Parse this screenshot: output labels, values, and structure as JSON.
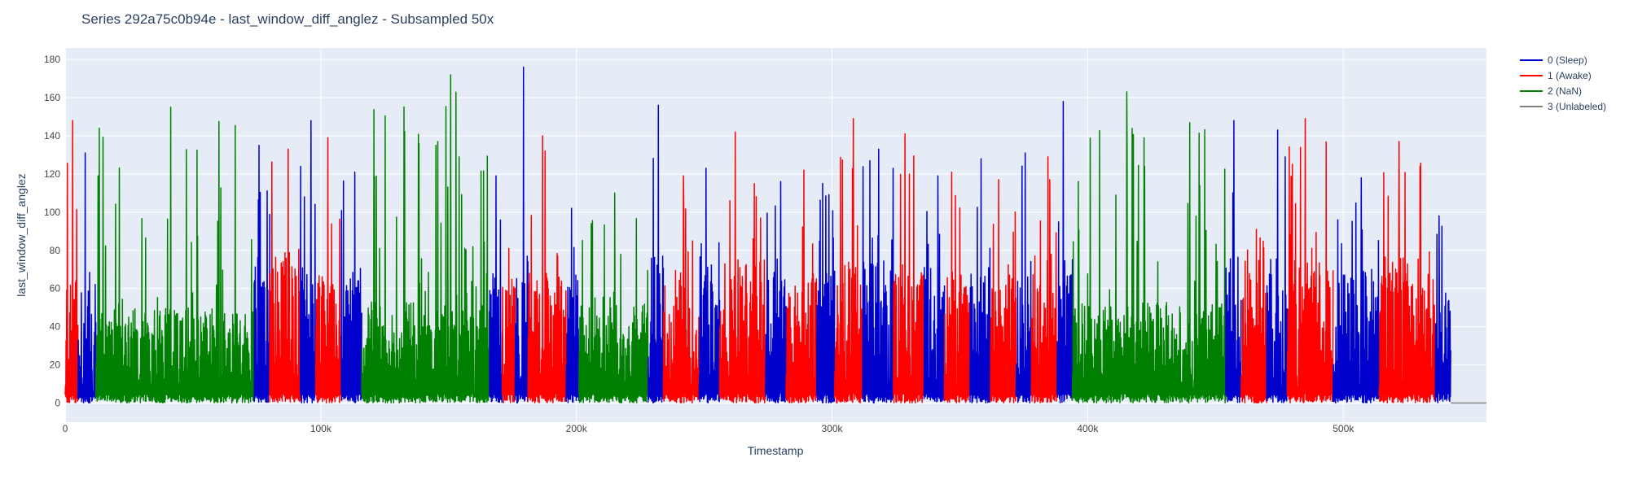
{
  "chart_data": {
    "type": "line",
    "title": "Series 292a75c0b94e - last_window_diff_anglez - Subsampled 50x",
    "xlabel": "Timestamp",
    "ylabel": "last_window_diff_anglez",
    "xlim": [
      0,
      556000
    ],
    "ylim": [
      -10,
      186
    ],
    "grid": true,
    "legend_position": "top-right",
    "x_ticks": [
      {
        "value": 0,
        "label": "0"
      },
      {
        "value": 100000,
        "label": "100k"
      },
      {
        "value": 200000,
        "label": "200k"
      },
      {
        "value": 300000,
        "label": "300k"
      },
      {
        "value": 400000,
        "label": "400k"
      },
      {
        "value": 500000,
        "label": "500k"
      }
    ],
    "y_ticks": [
      {
        "value": 0,
        "label": "0"
      },
      {
        "value": 20,
        "label": "20"
      },
      {
        "value": 40,
        "label": "40"
      },
      {
        "value": 60,
        "label": "60"
      },
      {
        "value": 80,
        "label": "80"
      },
      {
        "value": 100,
        "label": "100"
      },
      {
        "value": 120,
        "label": "120"
      },
      {
        "value": 140,
        "label": "140"
      },
      {
        "value": 160,
        "label": "160"
      },
      {
        "value": 180,
        "label": "180"
      }
    ],
    "series": [
      {
        "key": "sleep",
        "name": "0 (Sleep)",
        "color": "#0000cc"
      },
      {
        "key": "awake",
        "name": "1 (Awake)",
        "color": "#ff0000"
      },
      {
        "key": "nan",
        "name": "2 (NaN)",
        "color": "#008000"
      },
      {
        "key": "unlabeled",
        "name": "3 (Unlabeled)",
        "color": "#808080"
      }
    ],
    "segments": [
      {
        "series": "awake",
        "x_start": 0,
        "x_end": 5000,
        "peak": 148,
        "mean_level": 45
      },
      {
        "series": "sleep",
        "x_start": 5000,
        "x_end": 12000,
        "peak": 131,
        "mean_level": 40
      },
      {
        "series": "nan",
        "x_start": 12000,
        "x_end": 74000,
        "peak": 155,
        "mean_level": 28
      },
      {
        "series": "sleep",
        "x_start": 74000,
        "x_end": 80000,
        "peak": 135,
        "mean_level": 45
      },
      {
        "series": "awake",
        "x_start": 80000,
        "x_end": 92000,
        "peak": 133,
        "mean_level": 45
      },
      {
        "series": "sleep",
        "x_start": 92000,
        "x_end": 98000,
        "peak": 148,
        "mean_level": 45
      },
      {
        "series": "awake",
        "x_start": 98000,
        "x_end": 108000,
        "peak": 139,
        "mean_level": 40
      },
      {
        "series": "sleep",
        "x_start": 108000,
        "x_end": 116000,
        "peak": 121,
        "mean_level": 40
      },
      {
        "series": "nan",
        "x_start": 116000,
        "x_end": 166000,
        "peak": 172,
        "mean_level": 30
      },
      {
        "series": "sleep",
        "x_start": 166000,
        "x_end": 171000,
        "peak": 119,
        "mean_level": 40
      },
      {
        "series": "awake",
        "x_start": 171000,
        "x_end": 176000,
        "peak": 81,
        "mean_level": 35
      },
      {
        "series": "sleep",
        "x_start": 176000,
        "x_end": 181000,
        "peak": 176,
        "mean_level": 45
      },
      {
        "series": "awake",
        "x_start": 181000,
        "x_end": 196000,
        "peak": 140,
        "mean_level": 40
      },
      {
        "series": "sleep",
        "x_start": 196000,
        "x_end": 201000,
        "peak": 102,
        "mean_level": 40
      },
      {
        "series": "nan",
        "x_start": 201000,
        "x_end": 228000,
        "peak": 110,
        "mean_level": 30
      },
      {
        "series": "sleep",
        "x_start": 228000,
        "x_end": 234000,
        "peak": 156,
        "mean_level": 45
      },
      {
        "series": "awake",
        "x_start": 234000,
        "x_end": 248000,
        "peak": 119,
        "mean_level": 40
      },
      {
        "series": "sleep",
        "x_start": 248000,
        "x_end": 256000,
        "peak": 123,
        "mean_level": 45
      },
      {
        "series": "awake",
        "x_start": 256000,
        "x_end": 274000,
        "peak": 142,
        "mean_level": 45
      },
      {
        "series": "sleep",
        "x_start": 274000,
        "x_end": 282000,
        "peak": 116,
        "mean_level": 40
      },
      {
        "series": "awake",
        "x_start": 282000,
        "x_end": 294000,
        "peak": 122,
        "mean_level": 40
      },
      {
        "series": "sleep",
        "x_start": 294000,
        "x_end": 301000,
        "peak": 115,
        "mean_level": 40
      },
      {
        "series": "awake",
        "x_start": 301000,
        "x_end": 312000,
        "peak": 149,
        "mean_level": 45
      },
      {
        "series": "sleep",
        "x_start": 312000,
        "x_end": 324000,
        "peak": 133,
        "mean_level": 45
      },
      {
        "series": "awake",
        "x_start": 324000,
        "x_end": 336000,
        "peak": 141,
        "mean_level": 40
      },
      {
        "series": "sleep",
        "x_start": 336000,
        "x_end": 344000,
        "peak": 119,
        "mean_level": 40
      },
      {
        "series": "awake",
        "x_start": 344000,
        "x_end": 354000,
        "peak": 121,
        "mean_level": 40
      },
      {
        "series": "sleep",
        "x_start": 354000,
        "x_end": 362000,
        "peak": 128,
        "mean_level": 40
      },
      {
        "series": "awake",
        "x_start": 362000,
        "x_end": 372000,
        "peak": 117,
        "mean_level": 40
      },
      {
        "series": "sleep",
        "x_start": 372000,
        "x_end": 378000,
        "peak": 131,
        "mean_level": 40
      },
      {
        "series": "awake",
        "x_start": 378000,
        "x_end": 388000,
        "peak": 129,
        "mean_level": 45
      },
      {
        "series": "sleep",
        "x_start": 388000,
        "x_end": 394000,
        "peak": 158,
        "mean_level": 45
      },
      {
        "series": "nan",
        "x_start": 394000,
        "x_end": 454000,
        "peak": 163,
        "mean_level": 30
      },
      {
        "series": "sleep",
        "x_start": 454000,
        "x_end": 460000,
        "peak": 148,
        "mean_level": 45
      },
      {
        "series": "awake",
        "x_start": 460000,
        "x_end": 470000,
        "peak": 91,
        "mean_level": 40
      },
      {
        "series": "sleep",
        "x_start": 470000,
        "x_end": 478000,
        "peak": 143,
        "mean_level": 45
      },
      {
        "series": "awake",
        "x_start": 478000,
        "x_end": 496000,
        "peak": 149,
        "mean_level": 45
      },
      {
        "series": "sleep",
        "x_start": 496000,
        "x_end": 514000,
        "peak": 118,
        "mean_level": 40
      },
      {
        "series": "awake",
        "x_start": 514000,
        "x_end": 536000,
        "peak": 137,
        "mean_level": 45
      },
      {
        "series": "sleep",
        "x_start": 536000,
        "x_end": 542000,
        "peak": 98,
        "mean_level": 35
      },
      {
        "series": "unlabeled",
        "x_start": 542000,
        "x_end": 556000,
        "peak": 0,
        "mean_level": 0
      }
    ]
  }
}
